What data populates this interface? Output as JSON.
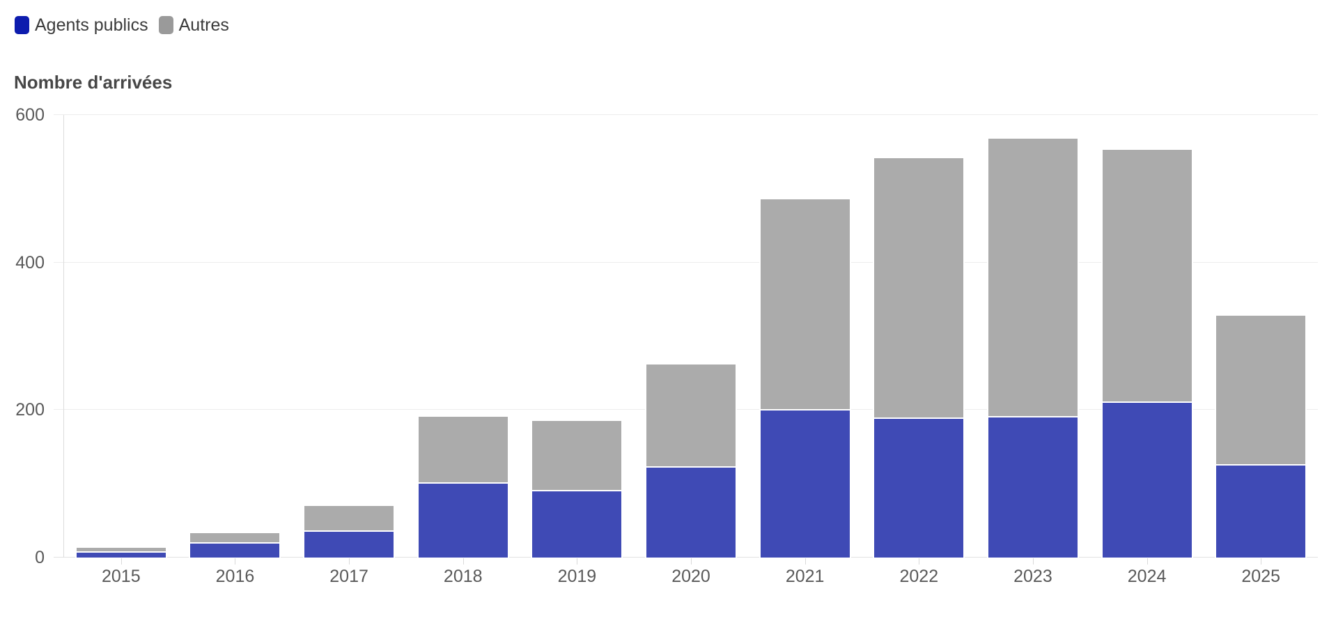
{
  "title": "Nombre d'arrivées",
  "legend": {
    "items": [
      {
        "label": "Agents publics",
        "swatch_color": "#0d1cae"
      },
      {
        "label": "Autres",
        "swatch_color": "#9a9a9a"
      }
    ]
  },
  "chart_data": {
    "type": "bar",
    "stacked": true,
    "title": "Nombre d'arrivées",
    "categories": [
      "2015",
      "2016",
      "2017",
      "2018",
      "2019",
      "2020",
      "2021",
      "2022",
      "2023",
      "2024",
      "2025"
    ],
    "series": [
      {
        "name": "Agents publics",
        "color": "#3f4ab5",
        "values": [
          7,
          19,
          35,
          100,
          90,
          122,
          199,
          188,
          190,
          210,
          125
        ]
      },
      {
        "name": "Autres",
        "color": "#ababab",
        "values": [
          8,
          16,
          37,
          93,
          97,
          142,
          289,
          355,
          380,
          345,
          205
        ]
      }
    ],
    "totals": [
      15,
      35,
      72,
      193,
      187,
      264,
      488,
      543,
      570,
      555,
      330
    ],
    "yticks": [
      0,
      200,
      400,
      600
    ],
    "ylim": [
      0,
      624
    ],
    "grid": true,
    "legend_position": "top-left",
    "xlabel": "",
    "ylabel": "Nombre d'arrivées"
  }
}
